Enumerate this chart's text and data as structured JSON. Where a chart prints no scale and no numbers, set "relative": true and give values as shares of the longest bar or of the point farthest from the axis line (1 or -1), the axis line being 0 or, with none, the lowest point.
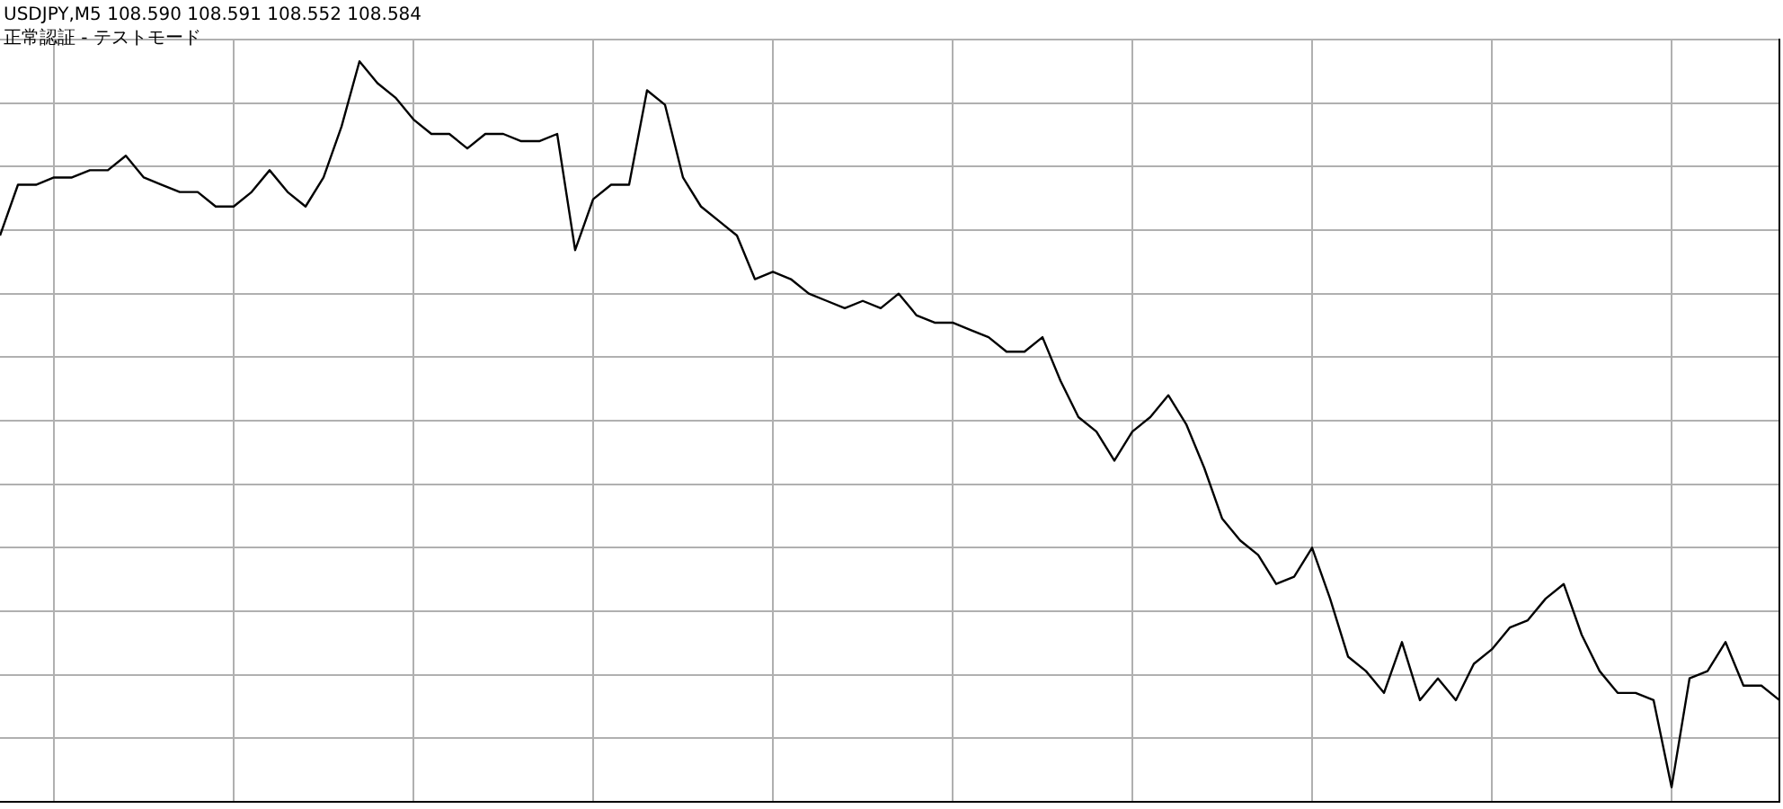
{
  "chart_data": {
    "type": "line",
    "title": "USDJPY,M5  108.590 108.591 108.552 108.584",
    "subtitle": "正常認証 - テストモード",
    "relative": true,
    "grid": true,
    "legend": false,
    "marker": "none",
    "line_style": "solid",
    "categories": [
      null,
      null,
      null,
      null,
      null,
      null,
      null,
      null,
      null,
      null,
      null,
      null,
      null,
      null,
      null,
      null,
      null,
      null,
      null,
      null,
      null,
      null,
      null,
      null,
      null,
      null,
      null,
      null,
      null,
      null,
      null,
      null,
      null,
      null,
      null,
      null,
      null,
      null,
      null,
      null,
      null,
      null,
      null,
      null,
      null,
      null,
      null,
      null,
      null,
      null,
      null,
      null,
      null,
      null,
      null,
      null,
      null,
      null,
      null,
      null,
      null,
      null,
      null,
      null,
      null,
      null,
      null,
      null,
      null,
      null,
      null,
      null,
      null,
      null,
      null,
      null,
      null,
      null,
      null,
      null,
      null,
      null,
      null,
      null,
      null,
      null,
      null,
      null,
      null,
      null,
      null,
      null,
      null,
      null,
      null,
      null,
      null,
      null,
      null,
      null
    ],
    "series": [
      {
        "color": "#000000",
        "values": [
          0.76,
          0.83,
          0.83,
          0.84,
          0.84,
          0.85,
          0.85,
          0.87,
          0.84,
          0.83,
          0.82,
          0.82,
          0.8,
          0.8,
          0.82,
          0.85,
          0.82,
          0.8,
          0.84,
          0.91,
          1,
          0.97,
          0.95,
          0.92,
          0.9,
          0.9,
          0.88,
          0.9,
          0.9,
          0.89,
          0.89,
          0.9,
          0.74,
          0.81,
          0.83,
          0.83,
          0.96,
          0.94,
          0.84,
          0.8,
          0.78,
          0.76,
          0.7,
          0.71,
          0.7,
          0.68,
          0.67,
          0.66,
          0.67,
          0.66,
          0.68,
          0.65,
          0.64,
          0.64,
          0.63,
          0.62,
          0.6,
          0.6,
          0.62,
          0.56,
          0.51,
          0.49,
          0.45,
          0.49,
          0.51,
          0.54,
          0.5,
          0.44,
          0.37,
          0.34,
          0.32,
          0.28,
          0.29,
          0.33,
          0.26,
          0.18,
          0.16,
          0.13,
          0.2,
          0.12,
          0.15,
          0.12,
          0.17,
          0.19,
          0.22,
          0.23,
          0.26,
          0.28,
          0.21,
          0.16,
          0.13,
          0.13,
          0.12,
          0,
          0.15,
          0.16,
          0.2,
          0.14,
          0.14,
          0.12
        ]
      }
    ]
  }
}
